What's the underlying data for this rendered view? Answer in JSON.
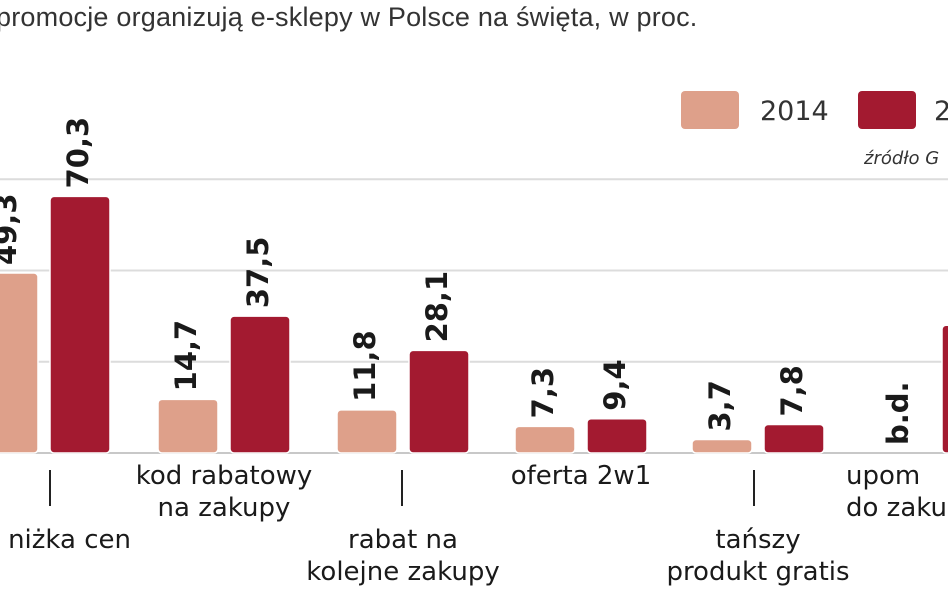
{
  "title": "promocje organizują e-sklepy w Polsce na święta, w proc.",
  "source_label": "źródło G",
  "colors": {
    "s2014": "#dea08a",
    "s2015": "#a31a30",
    "grid": "#dcdcdc"
  },
  "chart_data": {
    "type": "bar",
    "title": "promocje organizują e-sklepy w Polsce na święta, w proc.",
    "xlabel": "",
    "ylabel": "",
    "ylim": [
      0,
      100
    ],
    "grid": true,
    "legend_position": "top-right",
    "categories": [
      "niżka cen",
      "kod rabatowy na zakupy",
      "rabat na kolejne zakupy",
      "oferta 2w1",
      "tańszy produkt gratis",
      "upom do zaku"
    ],
    "category_label_lines": [
      [
        "niżka cen"
      ],
      [
        "kod rabatowy",
        "na  zakupy"
      ],
      [
        "rabat na",
        "kolejne zakupy"
      ],
      [
        "oferta 2w1"
      ],
      [
        "tańszy",
        "produkt gratis"
      ],
      [
        "upom",
        "do zaku"
      ]
    ],
    "series": [
      {
        "name": "2014",
        "values": [
          49.3,
          14.7,
          11.8,
          7.3,
          3.7,
          null
        ],
        "labels": [
          "49,3",
          "14,7",
          "11,8",
          "7,3",
          "3,7",
          "b.d."
        ]
      },
      {
        "name": "2",
        "values": [
          70.3,
          37.5,
          28.1,
          9.4,
          7.8,
          35.0
        ],
        "labels": [
          "70,3",
          "37,5",
          "28,1",
          "9,4",
          "7,8",
          ""
        ]
      }
    ]
  }
}
